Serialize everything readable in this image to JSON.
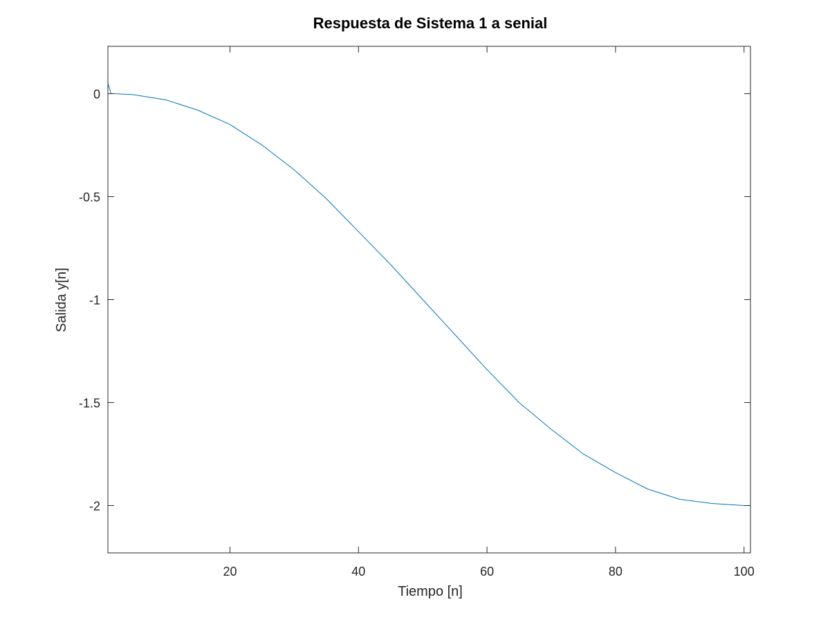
{
  "chart_data": {
    "type": "line",
    "title": "Respuesta de Sistema 1 a senial",
    "xlabel": "Tiempo [n]",
    "ylabel": "Salida y[n]",
    "xlim": [
      1,
      101
    ],
    "ylim": [
      -2.23,
      0.23
    ],
    "x_ticks": [
      20,
      40,
      60,
      80,
      100
    ],
    "x_tick_labels": [
      "20",
      "40",
      "60",
      "80",
      "100"
    ],
    "y_ticks": [
      0,
      -0.5,
      -1,
      -1.5,
      -2
    ],
    "y_tick_labels": [
      "0",
      "-0.5",
      "-1",
      "-1.5",
      "-2"
    ],
    "grid": false,
    "legend": "none",
    "series": [
      {
        "color": "#0072bd",
        "x": [
          1.0,
          1.5,
          2.0,
          5.0,
          10.0,
          15.0,
          20.0,
          25.0,
          30.0,
          35.0,
          40.0,
          45.0,
          50.0,
          55.0,
          60.0,
          65.0,
          70.0,
          75.0,
          80.0,
          85.0,
          90.0,
          95.0,
          100.0,
          101.0
        ],
        "y": [
          0.05,
          0.0,
          0.0,
          -0.005,
          -0.03,
          -0.08,
          -0.15,
          -0.25,
          -0.37,
          -0.51,
          -0.67,
          -0.83,
          -1.0,
          -1.17,
          -1.34,
          -1.5,
          -1.63,
          -1.75,
          -1.84,
          -1.92,
          -1.97,
          -1.99,
          -2.0,
          -2.0
        ]
      }
    ]
  }
}
